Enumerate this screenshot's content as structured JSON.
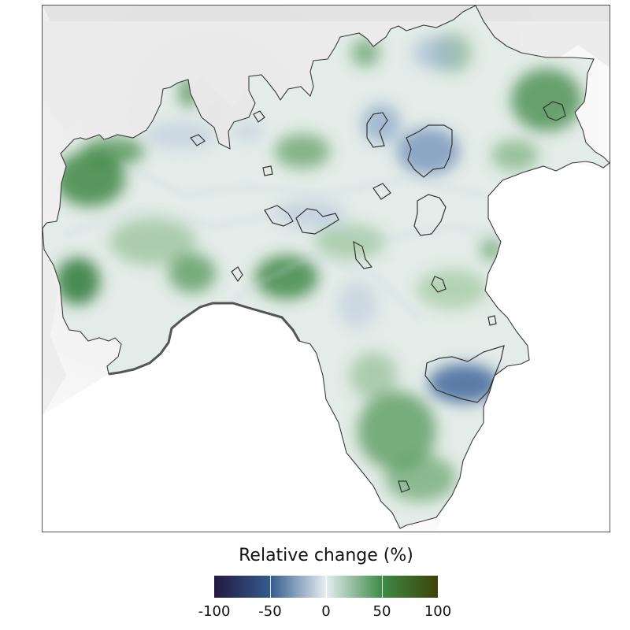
{
  "legend": {
    "title": "Relative change (%)",
    "ticks": [
      {
        "value": -100,
        "label": "-100"
      },
      {
        "value": -50,
        "label": "-50"
      },
      {
        "value": 0,
        "label": "0"
      },
      {
        "value": 50,
        "label": "50"
      },
      {
        "value": 100,
        "label": "100"
      }
    ],
    "range": [
      -100,
      100
    ],
    "colors": {
      "low": "#231942",
      "mid_low": "#345b8c",
      "neutral": "#e6edf2",
      "mid_high": "#3e8a46",
      "high": "#3e4208"
    }
  },
  "map": {
    "background": "hillshade relief (grey)",
    "region_fill_neutral": "#e3ece8",
    "outline_color": "#333333",
    "sea_color": "#ffffff"
  }
}
